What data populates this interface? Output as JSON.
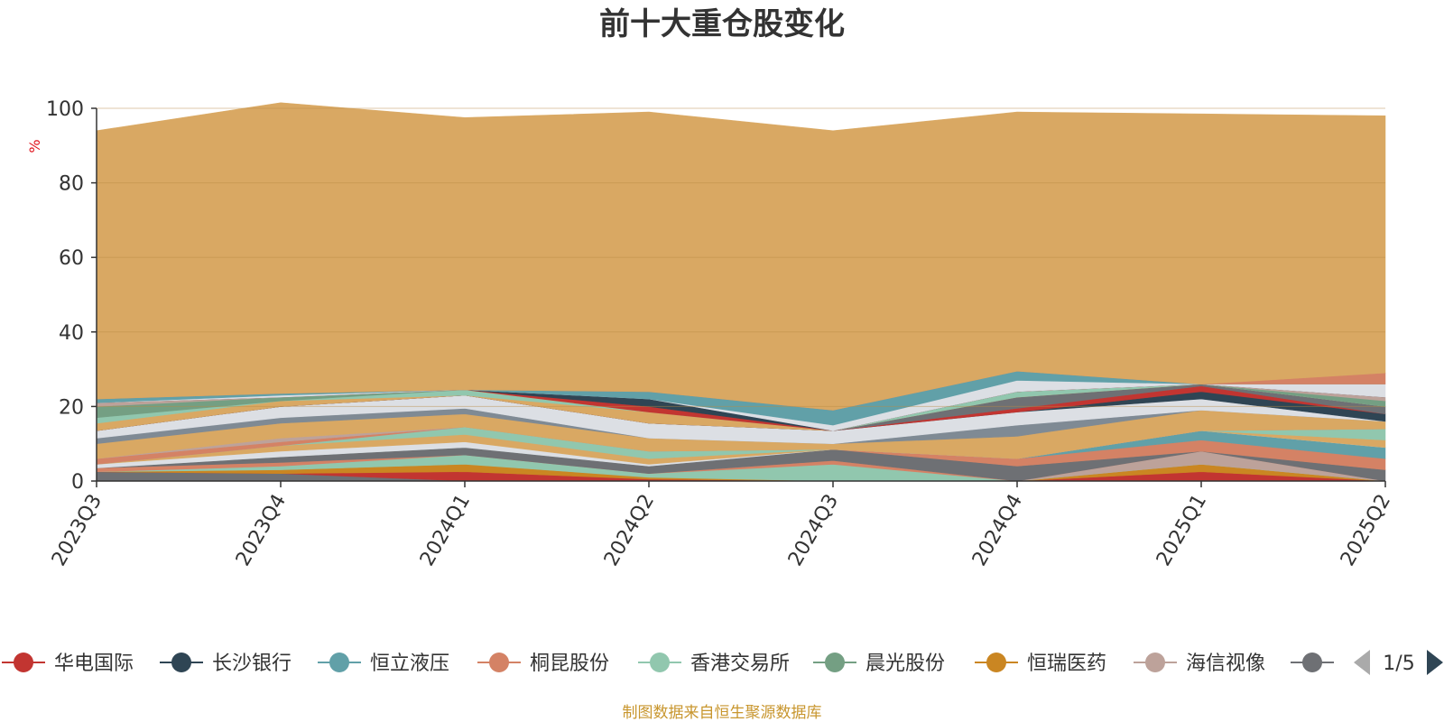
{
  "chart_data": {
    "type": "area",
    "stacked": true,
    "title": "前十大重仓股变化",
    "ylabel": "%",
    "ylim": [
      0,
      100
    ],
    "yticks": [
      0,
      20,
      40,
      60,
      80,
      100
    ],
    "grid": true,
    "categories": [
      "2023Q3",
      "2023Q4",
      "2024Q1",
      "2024Q2",
      "2024Q3",
      "2024Q4",
      "2025Q1",
      "2025Q2"
    ],
    "legend": {
      "position": "bottom",
      "page": "1/5",
      "items": [
        {
          "name": "华电国际",
          "color": "#c23531"
        },
        {
          "name": "长沙银行",
          "color": "#2f4554"
        },
        {
          "name": "恒立液压",
          "color": "#61a0a8"
        },
        {
          "name": "桐昆股份",
          "color": "#d48265"
        },
        {
          "name": "香港交易所",
          "color": "#91c7ae"
        },
        {
          "name": "晨光股份",
          "color": "#749f83"
        },
        {
          "name": "恒瑞医药",
          "color": "#ca8622"
        },
        {
          "name": "海信视像",
          "color": "#bda29a"
        },
        {
          "name": "",
          "color": "#6e7074"
        }
      ]
    },
    "series": [
      {
        "color": "#6e7074",
        "values": [
          2.5,
          2.0,
          0.0,
          0.0,
          0.0,
          0.0,
          0.0,
          0.0
        ]
      },
      {
        "color": "#c23531",
        "values": [
          0.0,
          0.0,
          2.5,
          0.5,
          0.0,
          0.0,
          2.5,
          0.0
        ]
      },
      {
        "color": "#ca8622",
        "values": [
          0.0,
          1.0,
          2.0,
          0.5,
          0.0,
          0.0,
          2.0,
          0.0
        ]
      },
      {
        "color": "#91c7ae",
        "values": [
          0.0,
          1.0,
          2.5,
          1.0,
          4.5,
          0.0,
          0.0,
          0.0
        ]
      },
      {
        "color": "#bda29a",
        "values": [
          0.0,
          0.0,
          0.0,
          0.0,
          0.0,
          0.0,
          3.5,
          0.0
        ]
      },
      {
        "color": "#d48265",
        "values": [
          1.0,
          1.0,
          0.0,
          0.0,
          1.0,
          0.0,
          0.0,
          0.0
        ]
      },
      {
        "color": "#6e7074",
        "values": [
          0.0,
          1.5,
          2.0,
          2.0,
          3.0,
          4.0,
          0.0,
          3.0
        ]
      },
      {
        "color": "#d48265",
        "values": [
          0.0,
          0.0,
          0.0,
          0.0,
          0.0,
          2.0,
          3.0,
          3.0
        ]
      },
      {
        "color": "#61a0a8",
        "values": [
          0.0,
          0.0,
          0.0,
          0.0,
          0.0,
          0.0,
          2.5,
          3.0
        ]
      },
      {
        "color": "#dcdfe4",
        "values": [
          1.0,
          1.5,
          1.5,
          0.5,
          0.0,
          0.0,
          0.0,
          0.0
        ]
      },
      {
        "color": "#d9a863",
        "values": [
          0.0,
          1.5,
          2.0,
          1.5,
          0.0,
          0.0,
          0.0,
          2.0
        ]
      },
      {
        "color": "#91c7ae",
        "values": [
          0.0,
          0.0,
          2.0,
          2.0,
          0.0,
          0.0,
          0.0,
          3.0
        ]
      },
      {
        "color": "#d48265",
        "values": [
          1.5,
          1.0,
          0.0,
          0.0,
          0.0,
          0.0,
          0.0,
          0.0
        ]
      },
      {
        "color": "#bda29a",
        "values": [
          0.0,
          1.0,
          0.0,
          0.0,
          0.0,
          0.0,
          0.0,
          0.0
        ]
      },
      {
        "color": "#d9a863",
        "values": [
          4.0,
          4.0,
          3.5,
          3.5,
          1.5,
          6.0,
          5.5,
          2.0
        ]
      },
      {
        "color": "#7f8a94",
        "values": [
          1.5,
          1.5,
          1.5,
          0.0,
          0.0,
          3.0,
          0.0,
          0.0
        ]
      },
      {
        "color": "#dcdfe4",
        "values": [
          2.0,
          3.0,
          3.5,
          4.0,
          3.5,
          3.5,
          3.0,
          0.0
        ]
      },
      {
        "color": "#2f4554",
        "values": [
          0.0,
          0.0,
          0.0,
          0.0,
          0.0,
          0.0,
          2.0,
          2.0
        ]
      },
      {
        "color": "#c23531",
        "values": [
          0.0,
          0.0,
          0.0,
          0.0,
          0.0,
          1.0,
          1.5,
          0.0
        ]
      },
      {
        "color": "#6e7074",
        "values": [
          0.0,
          0.0,
          0.0,
          0.0,
          0.0,
          3.0,
          0.5,
          2.0
        ]
      },
      {
        "color": "#d9a863",
        "values": [
          2.0,
          1.5,
          0.0,
          3.0,
          0.0,
          0.0,
          0.0,
          0.0
        ]
      },
      {
        "color": "#91c7ae",
        "values": [
          1.5,
          0.0,
          1.5,
          0.0,
          0.0,
          1.5,
          0.0,
          0.0
        ]
      },
      {
        "color": "#749f83",
        "values": [
          3.0,
          1.0,
          0.0,
          0.0,
          0.0,
          0.0,
          0.0,
          1.5
        ]
      },
      {
        "color": "#bda29a",
        "values": [
          1.0,
          0.0,
          0.0,
          0.0,
          0.0,
          0.0,
          0.0,
          1.0
        ]
      },
      {
        "color": "#d9a863",
        "values": [
          0.0,
          0.0,
          0.0,
          0.0,
          0.0,
          0.0,
          0.0,
          0.0
        ]
      },
      {
        "color": "#c23531",
        "values": [
          0.0,
          0.0,
          0.0,
          1.5,
          0.0,
          0.0,
          0.0,
          0.0
        ]
      },
      {
        "color": "#2f4554",
        "values": [
          0.0,
          0.0,
          0.0,
          2.0,
          0.0,
          0.0,
          0.0,
          0.0
        ]
      },
      {
        "color": "#dcdfe4",
        "values": [
          0.0,
          0.5,
          0.0,
          0.0,
          1.5,
          3.0,
          0.0,
          3.5
        ]
      },
      {
        "color": "#61a0a8",
        "values": [
          1.0,
          0.5,
          0.0,
          2.0,
          4.0,
          2.5,
          0.0,
          0.0
        ]
      },
      {
        "color": "#d48265",
        "values": [
          0.0,
          0.0,
          0.0,
          0.0,
          0.0,
          0.0,
          0.0,
          3.0
        ]
      },
      {
        "color": "#d9a863",
        "values": [
          72.0,
          78.0,
          73.0,
          75.0,
          75.0,
          69.5,
          72.5,
          69.0
        ]
      }
    ],
    "source_note": "制图数据来自恒生聚源数据库"
  }
}
